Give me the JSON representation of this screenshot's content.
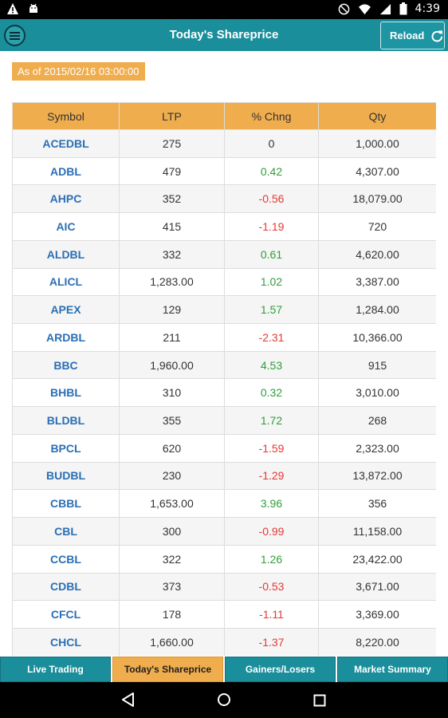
{
  "status_bar": {
    "time": "4:39",
    "icons": [
      "warning-icon",
      "android-debug-icon",
      "do-not-disturb-icon",
      "wifi-icon",
      "cell-signal-icon",
      "battery-icon"
    ]
  },
  "app_bar": {
    "title": "Today's Shareprice",
    "reload_label": "Reload"
  },
  "as_of": "As of 2015/02/16 03:00:00",
  "table": {
    "headers": [
      "Symbol",
      "LTP",
      "% Chng",
      "Qty"
    ],
    "rows": [
      {
        "symbol": "ACEDBL",
        "ltp": "275",
        "chng": "0",
        "qty": "1,000.00",
        "dir": "neu"
      },
      {
        "symbol": "ADBL",
        "ltp": "479",
        "chng": "0.42",
        "qty": "4,307.00",
        "dir": "pos"
      },
      {
        "symbol": "AHPC",
        "ltp": "352",
        "chng": "-0.56",
        "qty": "18,079.00",
        "dir": "neg"
      },
      {
        "symbol": "AIC",
        "ltp": "415",
        "chng": "-1.19",
        "qty": "720",
        "dir": "neg"
      },
      {
        "symbol": "ALDBL",
        "ltp": "332",
        "chng": "0.61",
        "qty": "4,620.00",
        "dir": "pos"
      },
      {
        "symbol": "ALICL",
        "ltp": "1,283.00",
        "chng": "1.02",
        "qty": "3,387.00",
        "dir": "pos"
      },
      {
        "symbol": "APEX",
        "ltp": "129",
        "chng": "1.57",
        "qty": "1,284.00",
        "dir": "pos"
      },
      {
        "symbol": "ARDBL",
        "ltp": "211",
        "chng": "-2.31",
        "qty": "10,366.00",
        "dir": "neg"
      },
      {
        "symbol": "BBC",
        "ltp": "1,960.00",
        "chng": "4.53",
        "qty": "915",
        "dir": "pos"
      },
      {
        "symbol": "BHBL",
        "ltp": "310",
        "chng": "0.32",
        "qty": "3,010.00",
        "dir": "pos"
      },
      {
        "symbol": "BLDBL",
        "ltp": "355",
        "chng": "1.72",
        "qty": "268",
        "dir": "pos"
      },
      {
        "symbol": "BPCL",
        "ltp": "620",
        "chng": "-1.59",
        "qty": "2,323.00",
        "dir": "neg"
      },
      {
        "symbol": "BUDBL",
        "ltp": "230",
        "chng": "-1.29",
        "qty": "13,872.00",
        "dir": "neg"
      },
      {
        "symbol": "CBBL",
        "ltp": "1,653.00",
        "chng": "3.96",
        "qty": "356",
        "dir": "pos"
      },
      {
        "symbol": "CBL",
        "ltp": "300",
        "chng": "-0.99",
        "qty": "11,158.00",
        "dir": "neg"
      },
      {
        "symbol": "CCBL",
        "ltp": "322",
        "chng": "1.26",
        "qty": "23,422.00",
        "dir": "pos"
      },
      {
        "symbol": "CDBL",
        "ltp": "373",
        "chng": "-0.53",
        "qty": "3,671.00",
        "dir": "neg"
      },
      {
        "symbol": "CFCL",
        "ltp": "178",
        "chng": "-1.11",
        "qty": "3,369.00",
        "dir": "neg"
      },
      {
        "symbol": "CHCL",
        "ltp": "1,660.00",
        "chng": "-1.37",
        "qty": "8,220.00",
        "dir": "neg"
      }
    ]
  },
  "tabs": [
    {
      "label": "Live Trading",
      "active": false
    },
    {
      "label": "Today's Shareprice",
      "active": true
    },
    {
      "label": "Gainers/Losers",
      "active": false
    },
    {
      "label": "Market Summary",
      "active": false
    }
  ],
  "colors": {
    "primary": "#1a8e9b",
    "accent": "#f0ad4e",
    "positive": "#2e9e3a",
    "negative": "#e53935",
    "symbol": "#2a6fb5"
  }
}
